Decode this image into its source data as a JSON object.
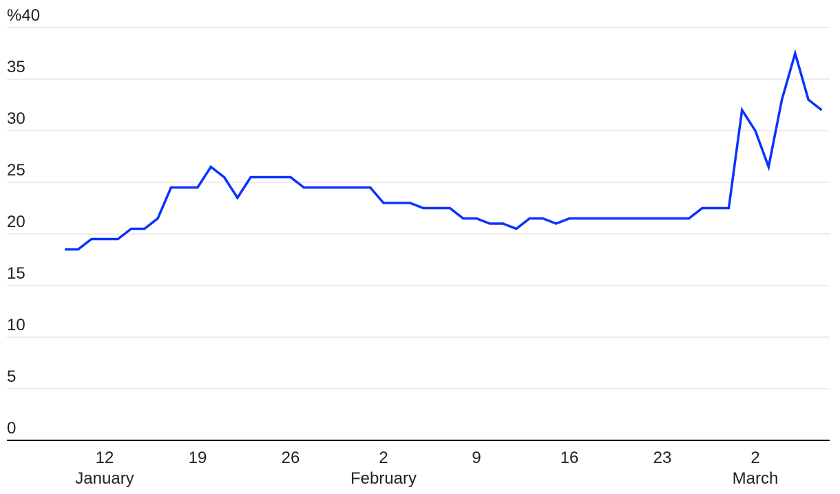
{
  "chart_data": {
    "type": "line",
    "x": [
      "01-09",
      "01-10",
      "01-11",
      "01-12",
      "01-13",
      "01-14",
      "01-15",
      "01-16",
      "01-17",
      "01-18",
      "01-19",
      "01-20",
      "01-21",
      "01-22",
      "01-23",
      "01-24",
      "01-25",
      "01-26",
      "01-27",
      "01-28",
      "01-29",
      "01-30",
      "01-31",
      "02-01",
      "02-02",
      "02-03",
      "02-04",
      "02-05",
      "02-06",
      "02-07",
      "02-08",
      "02-09",
      "02-10",
      "02-11",
      "02-12",
      "02-13",
      "02-14",
      "02-15",
      "02-16",
      "02-17",
      "02-18",
      "02-19",
      "02-20",
      "02-21",
      "02-22",
      "02-23",
      "02-24",
      "02-25",
      "02-26",
      "02-27",
      "02-28",
      "03-01",
      "03-02",
      "03-03",
      "03-04",
      "03-05",
      "03-06",
      "03-07"
    ],
    "series": [
      {
        "color": "#0a32ff",
        "values": [
          18.5,
          18.5,
          19.5,
          19.5,
          19.5,
          20.5,
          20.5,
          21.5,
          24.5,
          24.5,
          24.5,
          26.5,
          25.5,
          23.5,
          25.5,
          25.5,
          25.5,
          25.5,
          24.5,
          24.5,
          24.5,
          24.5,
          24.5,
          24.5,
          23,
          23,
          23,
          22.5,
          22.5,
          22.5,
          21.5,
          21.5,
          21,
          21,
          20.5,
          21.5,
          21.5,
          21,
          21.5,
          21.5,
          21.5,
          21.5,
          21.5,
          21.5,
          21.5,
          21.5,
          21.5,
          21.5,
          22.5,
          22.5,
          22.5,
          32,
          30,
          26.5,
          33,
          37.5,
          33,
          32
        ]
      }
    ],
    "xticks": [
      {
        "value": "01-12",
        "label": "12"
      },
      {
        "value": "01-19",
        "label": "19"
      },
      {
        "value": "01-26",
        "label": "26"
      },
      {
        "value": "02-02",
        "label": "2"
      },
      {
        "value": "02-09",
        "label": "9"
      },
      {
        "value": "02-16",
        "label": "16"
      },
      {
        "value": "02-23",
        "label": "23"
      },
      {
        "value": "03-02",
        "label": "2"
      }
    ],
    "month_labels": [
      {
        "value": "01-12",
        "label": "January"
      },
      {
        "value": "02-02",
        "label": "February"
      },
      {
        "value": "03-02",
        "label": "March"
      }
    ],
    "ylim": [
      0,
      40
    ],
    "yticks": [
      0,
      5,
      10,
      15,
      20,
      25,
      30,
      35,
      {
        "value": 40,
        "label": "%40"
      }
    ],
    "grid": true
  }
}
